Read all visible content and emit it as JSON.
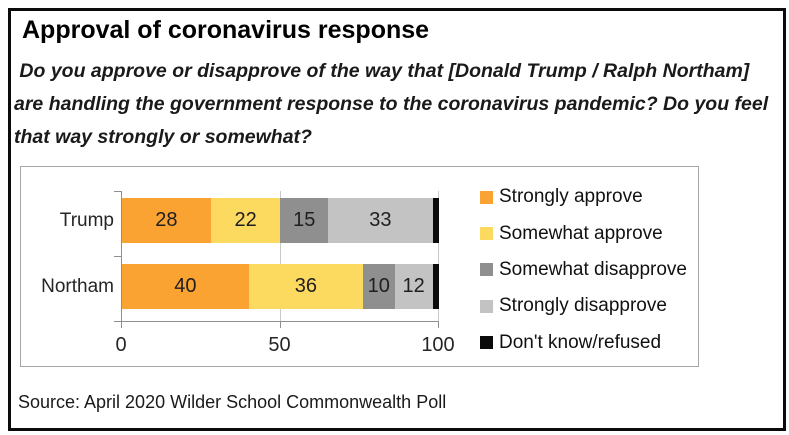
{
  "header": {
    "title": "Approval of coronavirus response",
    "question": " Do you approve or disapprove of the way that [Donald Trump / Ralph Northam] are handling the government response to the coronavirus pandemic? Do you feel that way strongly or somewhat?"
  },
  "source_note": "Source: April 2020 Wilder School Commonwealth Poll",
  "chart_data": {
    "type": "bar",
    "orientation": "horizontal",
    "stacked": true,
    "categories": [
      "Trump",
      "Northam"
    ],
    "series": [
      {
        "name": "Strongly approve",
        "color": "#FAA232",
        "values": [
          28,
          40
        ],
        "show_labels": true
      },
      {
        "name": "Somewhat approve",
        "color": "#FCD95F",
        "values": [
          22,
          36
        ],
        "show_labels": true
      },
      {
        "name": "Somewhat disapprove",
        "color": "#8F8F8F",
        "values": [
          15,
          10
        ],
        "show_labels": true
      },
      {
        "name": "Strongly disapprove",
        "color": "#C3C3C3",
        "values": [
          33,
          12
        ],
        "show_labels": true
      },
      {
        "name": "Don't know/refused",
        "color": "#0A0A0A",
        "values": [
          2,
          2
        ],
        "show_labels": false
      }
    ],
    "xlim": [
      0,
      100
    ],
    "x_ticks": [
      0,
      50,
      100
    ],
    "grid": true,
    "legend_position": "right",
    "data_labels": true
  }
}
